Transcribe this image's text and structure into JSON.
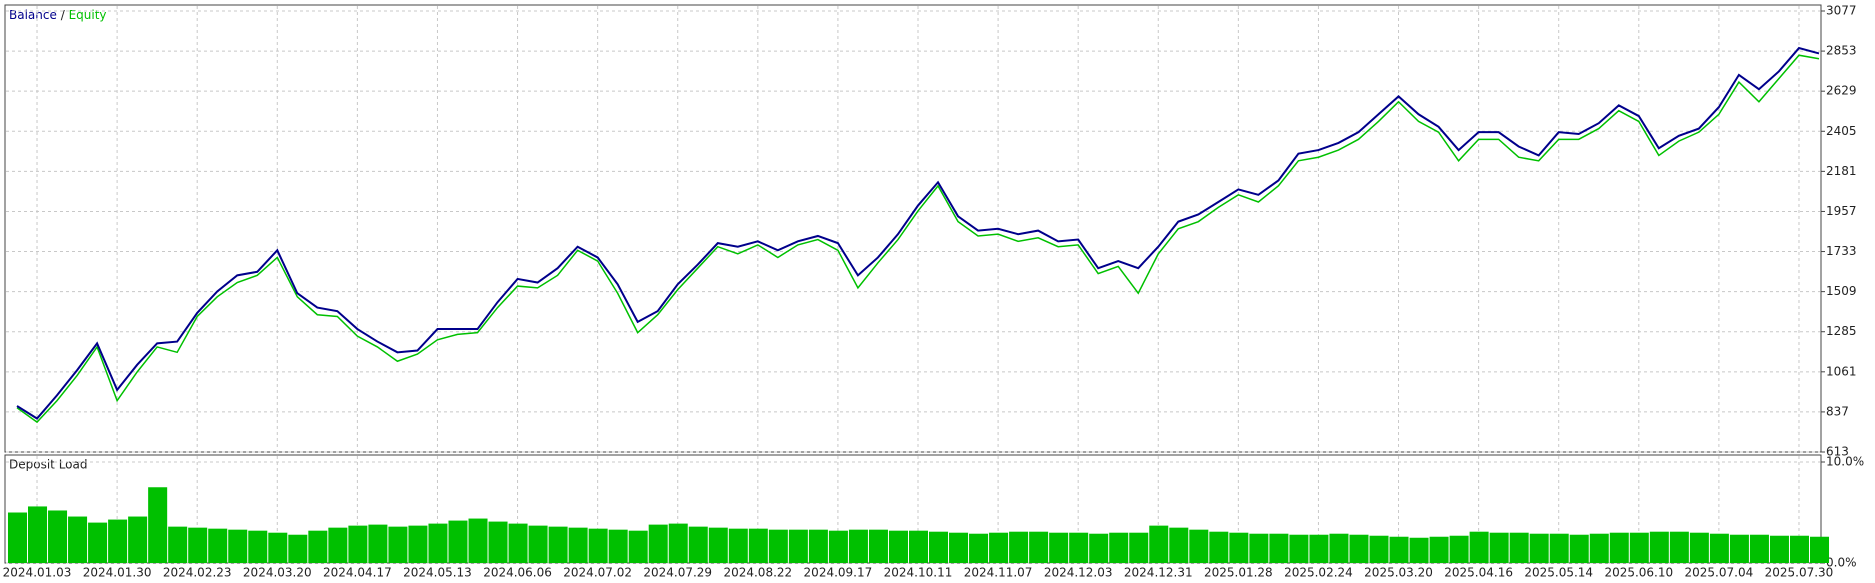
{
  "chart_data": [
    {
      "type": "line",
      "legend_separator": "/",
      "grid": true,
      "ylim": [
        613,
        3077
      ],
      "yticks": [
        613,
        837,
        1061,
        1285,
        1509,
        1733,
        1957,
        2181,
        2405,
        2629,
        2853,
        3077
      ],
      "series": [
        {
          "name": "Equity",
          "color": "#00c000",
          "values": [
            860,
            780,
            900,
            1040,
            1200,
            900,
            1060,
            1200,
            1170,
            1370,
            1480,
            1560,
            1600,
            1700,
            1480,
            1380,
            1370,
            1260,
            1200,
            1120,
            1160,
            1240,
            1270,
            1280,
            1420,
            1540,
            1530,
            1600,
            1740,
            1680,
            1500,
            1280,
            1380,
            1520,
            1640,
            1760,
            1720,
            1770,
            1700,
            1770,
            1800,
            1740,
            1530,
            1670,
            1800,
            1960,
            2100,
            1900,
            1820,
            1830,
            1790,
            1810,
            1760,
            1770,
            1610,
            1650,
            1500,
            1720,
            1860,
            1900,
            1980,
            2050,
            2010,
            2100,
            2240,
            2260,
            2300,
            2360,
            2460,
            2570,
            2460,
            2400,
            2240,
            2360,
            2360,
            2260,
            2240,
            2360,
            2360,
            2420,
            2520,
            2460,
            2270,
            2350,
            2400,
            2500,
            2680,
            2570,
            2700,
            2830,
            2810
          ]
        },
        {
          "name": "Balance",
          "color": "#00008b",
          "values": [
            870,
            800,
            930,
            1070,
            1220,
            960,
            1100,
            1220,
            1230,
            1390,
            1510,
            1600,
            1620,
            1740,
            1500,
            1420,
            1400,
            1300,
            1230,
            1170,
            1180,
            1300,
            1300,
            1300,
            1450,
            1580,
            1560,
            1640,
            1760,
            1700,
            1550,
            1340,
            1400,
            1550,
            1660,
            1780,
            1760,
            1790,
            1740,
            1790,
            1820,
            1780,
            1600,
            1700,
            1830,
            1990,
            2120,
            1930,
            1850,
            1860,
            1830,
            1850,
            1790,
            1800,
            1640,
            1680,
            1640,
            1760,
            1900,
            1940,
            2010,
            2080,
            2050,
            2130,
            2280,
            2300,
            2340,
            2400,
            2500,
            2600,
            2500,
            2430,
            2300,
            2400,
            2400,
            2320,
            2270,
            2400,
            2390,
            2450,
            2550,
            2490,
            2310,
            2380,
            2420,
            2540,
            2720,
            2640,
            2740,
            2870,
            2840
          ]
        }
      ]
    },
    {
      "type": "bar",
      "title": "Deposit Load",
      "color": "#00c000",
      "grid": true,
      "ylim": [
        0,
        10
      ],
      "yticks": [
        {
          "value": 0,
          "label": "0.0%"
        },
        {
          "value": 10,
          "label": "10.0%"
        }
      ],
      "categories": [
        null,
        "2024.01.03",
        null,
        null,
        null,
        "2024.01.30",
        null,
        null,
        null,
        "2024.02.23",
        null,
        null,
        null,
        "2024.03.20",
        null,
        null,
        null,
        "2024.04.17",
        null,
        null,
        null,
        "2024.05.13",
        null,
        null,
        null,
        "2024.06.06",
        null,
        null,
        null,
        "2024.07.02",
        null,
        null,
        null,
        "2024.07.29",
        null,
        null,
        null,
        "2024.08.22",
        null,
        null,
        null,
        "2024.09.17",
        null,
        null,
        null,
        "2024.10.11",
        null,
        null,
        null,
        "2024.11.07",
        null,
        null,
        null,
        "2024.12.03",
        null,
        null,
        null,
        "2024.12.31",
        null,
        null,
        null,
        "2025.01.28",
        null,
        null,
        null,
        "2025.02.24",
        null,
        null,
        null,
        "2025.03.20",
        null,
        null,
        null,
        "2025.04.16",
        null,
        null,
        null,
        "2025.05.14",
        null,
        null,
        null,
        "2025.06.10",
        null,
        null,
        null,
        "2025.07.04",
        null,
        null,
        null,
        "2025.07.30",
        null
      ],
      "values": [
        5.0,
        5.6,
        5.2,
        4.6,
        4.0,
        4.3,
        4.6,
        7.5,
        3.6,
        3.5,
        3.4,
        3.3,
        3.2,
        3.0,
        2.8,
        3.2,
        3.5,
        3.7,
        3.8,
        3.6,
        3.7,
        3.9,
        4.2,
        4.4,
        4.1,
        3.9,
        3.7,
        3.6,
        3.5,
        3.4,
        3.3,
        3.2,
        3.8,
        3.9,
        3.6,
        3.5,
        3.4,
        3.4,
        3.3,
        3.3,
        3.3,
        3.2,
        3.3,
        3.3,
        3.2,
        3.2,
        3.1,
        3.0,
        2.9,
        3.0,
        3.1,
        3.1,
        3.0,
        3.0,
        2.9,
        3.0,
        3.0,
        3.7,
        3.5,
        3.3,
        3.1,
        3.0,
        2.9,
        2.9,
        2.8,
        2.8,
        2.9,
        2.8,
        2.7,
        2.6,
        2.5,
        2.6,
        2.7,
        3.1,
        3.0,
        3.0,
        2.9,
        2.9,
        2.8,
        2.9,
        3.0,
        3.0,
        3.1,
        3.1,
        3.0,
        2.9,
        2.8,
        2.8,
        2.7,
        2.7,
        2.6
      ]
    }
  ]
}
